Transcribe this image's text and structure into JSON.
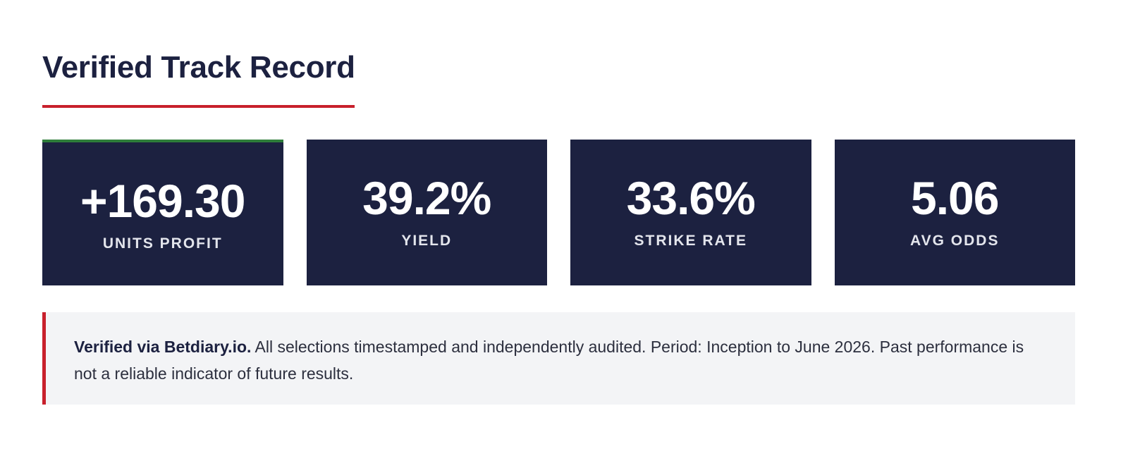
{
  "section": {
    "title": "Verified Track Record"
  },
  "stats": [
    {
      "value": "+169.30",
      "label": "UNITS PROFIT",
      "highlight": true
    },
    {
      "value": "39.2%",
      "label": "YIELD",
      "highlight": false
    },
    {
      "value": "33.6%",
      "label": "STRIKE RATE",
      "highlight": false
    },
    {
      "value": "5.06",
      "label": "AVG ODDS",
      "highlight": false
    }
  ],
  "note": {
    "strong": "Verified via Betdiary.io.",
    "text": " All selections timestamped and independently audited. Period: Inception to June 2026. Past performance is not a reliable indicator of future results."
  },
  "colors": {
    "navy": "#1c2140",
    "accent_red": "#c8202c",
    "accent_green": "#2e7d3a",
    "note_background": "#f3f4f6"
  }
}
